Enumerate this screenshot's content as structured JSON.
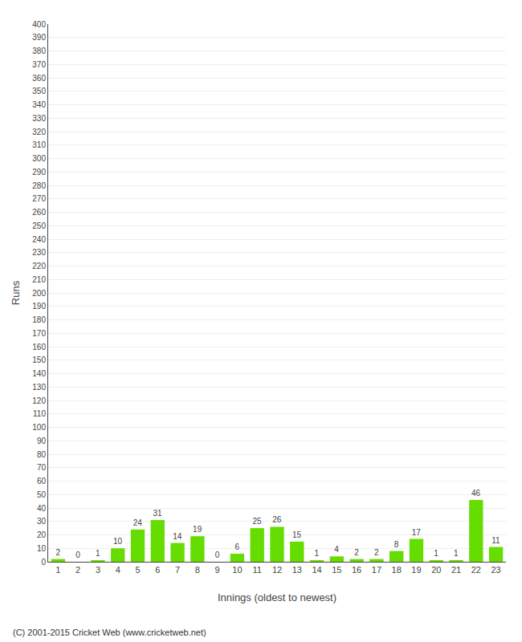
{
  "chart_data": {
    "type": "bar",
    "xlabel": "Innings (oldest to newest)",
    "ylabel": "Runs",
    "categories": [
      "1",
      "2",
      "3",
      "4",
      "5",
      "6",
      "7",
      "8",
      "9",
      "10",
      "11",
      "12",
      "13",
      "14",
      "15",
      "16",
      "17",
      "18",
      "19",
      "20",
      "21",
      "22",
      "23"
    ],
    "values": [
      2,
      0,
      1,
      10,
      24,
      31,
      14,
      19,
      0,
      6,
      25,
      26,
      15,
      1,
      4,
      2,
      2,
      8,
      17,
      1,
      1,
      46,
      11
    ],
    "color": "#66dd00",
    "ylim": [
      0,
      400
    ],
    "yticks": [
      0,
      10,
      20,
      30,
      40,
      50,
      60,
      70,
      80,
      90,
      100,
      110,
      120,
      130,
      140,
      150,
      160,
      170,
      180,
      190,
      200,
      210,
      220,
      230,
      240,
      250,
      260,
      270,
      280,
      290,
      300,
      310,
      320,
      330,
      340,
      350,
      360,
      370,
      380,
      390,
      400
    ],
    "grid": true,
    "data_labels": true,
    "footer": "(C) 2001-2015 Cricket Web (www.cricketweb.net)"
  }
}
